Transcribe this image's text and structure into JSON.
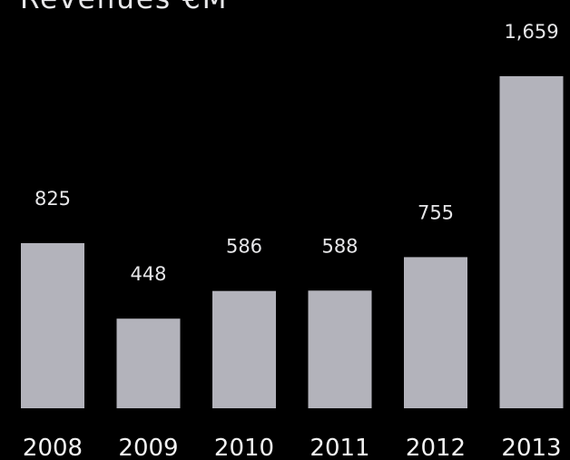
{
  "chart_data": {
    "type": "bar",
    "title": "Revenues €M",
    "categories": [
      "2008",
      "2009",
      "2010",
      "2011",
      "2012",
      "2013"
    ],
    "values": [
      825,
      448,
      586,
      588,
      755,
      1659
    ],
    "value_labels": [
      "825",
      "448",
      "586",
      "588",
      "755",
      "1,659"
    ],
    "xlabel": "",
    "ylabel": "",
    "ylim": [
      0,
      1659
    ],
    "grid": false,
    "legend": "none",
    "colors": {
      "background": "#000000",
      "bar": "#b3b3bb",
      "text": "#e6e6e8"
    }
  }
}
